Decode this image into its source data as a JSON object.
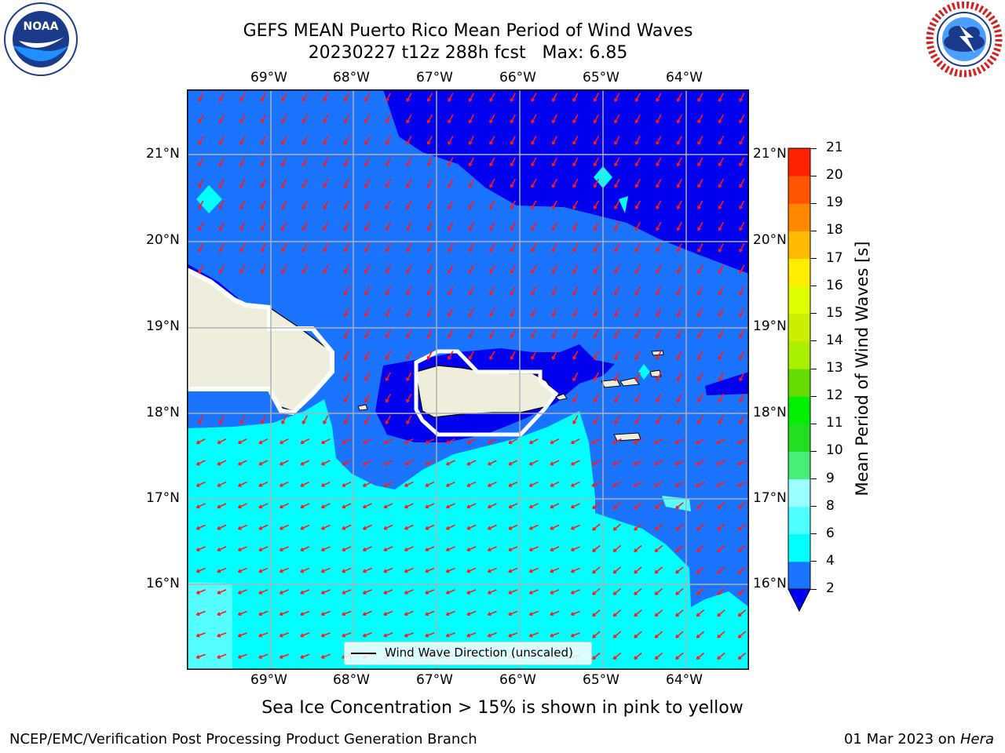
{
  "header": {
    "title_line1": "GEFS MEAN Puerto Rico Mean Period of Wind Waves",
    "title_line2": "20230227 t12z 288h fcst   Max: 6.85"
  },
  "logos": {
    "left": {
      "icon": "noaa-logo",
      "text": "NOAA",
      "ring_text": "NATIONAL OCEANIC AND ATMOSPHERIC ADMINISTRATION · U.S. DEPARTMENT OF COMMERCE"
    },
    "right": {
      "icon": "nws-logo",
      "ring_text": "NATIONAL WEATHER SERVICE"
    }
  },
  "map": {
    "lon_labels": [
      "69°W",
      "68°W",
      "67°W",
      "66°W",
      "65°W",
      "64°W"
    ],
    "lat_labels": [
      "21°N",
      "20°N",
      "19°N",
      "18°N",
      "17°N",
      "16°N"
    ],
    "legend_label": "Wind Wave Direction (unscaled)",
    "colors": {
      "deep_blue": "#0000ee",
      "mid_blue": "#1a74ff",
      "cyan": "#00ffff",
      "light_cyan": "#55ffff",
      "land": "#efeedd",
      "arrow": "#ff1a1a",
      "grid": "#b0b0b0"
    }
  },
  "colorbar": {
    "title": "Mean Period of Wind Waves [s]",
    "levels": [
      "2",
      "4",
      "6",
      "8",
      "9",
      "10",
      "11",
      "12",
      "13",
      "14",
      "15",
      "16",
      "17",
      "18",
      "19",
      "20",
      "21"
    ],
    "colors": [
      "#1a74ff",
      "#00ffff",
      "#4dffff",
      "#99ffff",
      "#44ee77",
      "#22dd22",
      "#00ee00",
      "#66dd00",
      "#aaee00",
      "#ccee00",
      "#ddff00",
      "#ffee00",
      "#ffbb00",
      "#ff8800",
      "#ff5500",
      "#ff2200"
    ],
    "extend_color": "#0000ee"
  },
  "caption": "Sea Ice Concentration > 15% is shown in pink to yellow",
  "footer": {
    "left": "NCEP/EMC/Verification Post Processing Product Generation Branch",
    "right_date": "01 Mar 2023 on ",
    "right_host": "Hera"
  }
}
